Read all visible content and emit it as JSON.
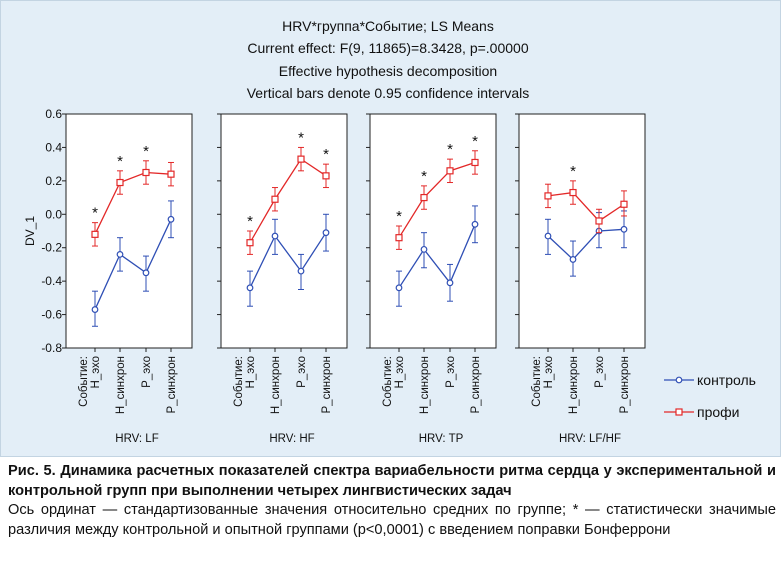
{
  "figure": {
    "caption_title": "Рис. 5. Динамика расчетных показателей спектра вариабельности ритма сердца у экспериментальной и контрольной групп при выполнении четырех лингвистических задач",
    "caption_body": "Ось ординат — стандартизованные значения относительно средних по группе; * — статистически значимые различия между контрольной и опытной группами (p<0,0001) с введением поправки Бонферрони"
  },
  "chart_data": {
    "type": "line",
    "title_lines": [
      "HRV*группа*Событие; LS Means",
      "Current effect: F(9, 11865)=8.3428, p=.00000",
      "Effective hypothesis decomposition",
      "Vertical bars denote 0.95 confidence intervals"
    ],
    "ylabel": "DV_1",
    "ylim": [
      -0.8,
      0.6
    ],
    "yticks": [
      "0.6",
      "0.4",
      "0.2",
      "0.0",
      "-0.2",
      "-0.4",
      "-0.6",
      "-0.8"
    ],
    "ytick_values": [
      0.6,
      0.4,
      0.2,
      0.0,
      -0.2,
      -0.4,
      -0.6,
      -0.8
    ],
    "x_axis_name": "Событие:",
    "categories": [
      "Н_эхо",
      "Н_синхрон",
      "Р_эхо",
      "Р_синхрон"
    ],
    "legend": {
      "position": "right"
    },
    "series_styles": [
      {
        "name": "контроль",
        "color": "#2f4fb5",
        "marker": "circle"
      },
      {
        "name": "профи",
        "color": "#e32828",
        "marker": "square"
      }
    ],
    "panels": [
      {
        "label": "HRV: LF",
        "series": [
          {
            "name": "контроль",
            "values": [
              -0.57,
              -0.24,
              -0.35,
              -0.03
            ],
            "lower": [
              -0.67,
              -0.34,
              -0.46,
              -0.14
            ],
            "upper": [
              -0.46,
              -0.14,
              -0.25,
              0.08
            ]
          },
          {
            "name": "профи",
            "values": [
              -0.12,
              0.19,
              0.25,
              0.24
            ],
            "lower": [
              -0.19,
              0.12,
              0.18,
              0.17
            ],
            "upper": [
              -0.05,
              0.26,
              0.32,
              0.31
            ]
          }
        ],
        "significant": [
          true,
          true,
          true,
          false
        ]
      },
      {
        "label": "HRV: HF",
        "series": [
          {
            "name": "контроль",
            "values": [
              -0.44,
              -0.13,
              -0.34,
              -0.11
            ],
            "lower": [
              -0.55,
              -0.24,
              -0.45,
              -0.22
            ],
            "upper": [
              -0.34,
              -0.03,
              -0.24,
              0.0
            ]
          },
          {
            "name": "профи",
            "values": [
              -0.17,
              0.09,
              0.33,
              0.23
            ],
            "lower": [
              -0.24,
              0.02,
              0.26,
              0.16
            ],
            "upper": [
              -0.1,
              0.16,
              0.4,
              0.3
            ]
          }
        ],
        "significant": [
          true,
          false,
          true,
          true
        ]
      },
      {
        "label": "HRV: TP",
        "series": [
          {
            "name": "контроль",
            "values": [
              -0.44,
              -0.21,
              -0.41,
              -0.06
            ],
            "lower": [
              -0.55,
              -0.32,
              -0.52,
              -0.17
            ],
            "upper": [
              -0.34,
              -0.11,
              -0.3,
              0.05
            ]
          },
          {
            "name": "профи",
            "values": [
              -0.14,
              0.1,
              0.26,
              0.31
            ],
            "lower": [
              -0.21,
              0.03,
              0.19,
              0.24
            ],
            "upper": [
              -0.07,
              0.17,
              0.33,
              0.38
            ]
          }
        ],
        "significant": [
          true,
          true,
          true,
          true
        ]
      },
      {
        "label": "HRV: LF/HF",
        "series": [
          {
            "name": "контроль",
            "values": [
              -0.13,
              -0.27,
              -0.1,
              -0.09
            ],
            "lower": [
              -0.24,
              -0.37,
              -0.2,
              -0.2
            ],
            "upper": [
              -0.03,
              -0.16,
              0.01,
              0.02
            ]
          },
          {
            "name": "профи",
            "values": [
              0.11,
              0.13,
              -0.04,
              0.06
            ],
            "lower": [
              0.04,
              0.06,
              -0.11,
              -0.01
            ],
            "upper": [
              0.18,
              0.2,
              0.03,
              0.14
            ]
          }
        ],
        "significant": [
          false,
          true,
          false,
          false
        ]
      }
    ]
  }
}
